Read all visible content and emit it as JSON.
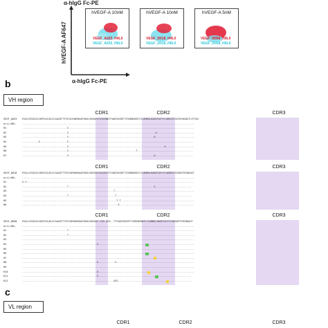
{
  "panel_a": {
    "x_axis_label": "α-hIgG Fc-PE",
    "y_axis_label": "hVEGF-A AF647",
    "top_label": "α-hIgG Fc-PE",
    "plots": [
      {
        "title": "hVEGF-A 10nM",
        "red_label": "VEGF_A033_H4L0",
        "cyan_label": "VEGF_A033_H0L0"
      },
      {
        "title": "hVEGF-A 10nM",
        "red_label": "VEGF_D018_H4L0",
        "cyan_label": "VEGF_D018_H0L0"
      },
      {
        "title": "hVEGF-A 5nM",
        "red_label": "VEGF_D058_H9L0",
        "cyan_label": "VEGF_D058_H0L0"
      }
    ]
  },
  "panel_b": {
    "letter": "b",
    "region_title": "VH region",
    "blocks": [
      {
        "cdr_labels": [
          "CDR1",
          "CDR2",
          "CDR3"
        ],
        "header_name": "VEGF_A033",
        "header_seq": "EVQLVESGGGLVKPGGSLRLSCAASGFTFSSYAIHWVRQAPGKGLEWVAVISYDGSNKYYADSVKGRFTISRDNSKNTLYLQMNSLRAEDTAVYYCAREGGYSGYDYWGQGTLVTVSS",
        "rows": [
          {
            "name": "ori(=H0)",
            "seq": "..................................................................................................................."
          },
          {
            "name": "H1",
            "seq": "..............................S...................................................................................."
          },
          {
            "name": "H2",
            "seq": "..............................S..........................................................A........................."
          },
          {
            "name": "H3",
            "seq": "..............................S.........................................................D.........................."
          },
          {
            "name": "H4",
            "seq": "...........E..................S..................................................................................."
          },
          {
            "name": "H5",
            "seq": "..............................S................................................................A..................."
          },
          {
            "name": "H6",
            "seq": "..............................S.............................................T....................................."
          },
          {
            "name": "H7",
            "seq": "..............................S.........................................................A........................."
          }
        ]
      },
      {
        "cdr_labels": [
          "CDR1",
          "CDR2",
          "CDR3"
        ],
        "header_name": "VEGF_D018",
        "header_seq": "EVQLLESGGGLVQPGGSLRLSCAASGFTFSSYAMSWVRQAPGKGLEWVSAISGSGGSTYYADSVKGRFTISRDNSKNTLYLQMNSLRAEDTAVYYCAKDRGYSSGWYFDYWGQGT",
        "rows": [
          {
            "name": "ori(=H0)",
            "seq": "..................................................................................................................."
          },
          {
            "name": "H1",
            "seq": "A.V................................................................................................................"
          },
          {
            "name": "H2",
            "seq": "..............................T.........................................................S........................"
          },
          {
            "name": "H3",
            "seq": ".............................................................T....................................................."
          },
          {
            "name": "H4",
            "seq": "..............................T...............................T.................................................."
          },
          {
            "name": "H5",
            "seq": "...............................................................T.T................................................."
          },
          {
            "name": "H6",
            "seq": "................................................................E.................................................."
          }
        ]
      },
      {
        "cdr_labels": [
          "CDR1",
          "CDR2",
          "CDR3"
        ],
        "header_name": "VEGF_D058",
        "header_seq": "EVQLLESGGGLVQPGGSLRLSCAASGFTFSSYAMSWVRQAPGKGLEWVSAI-SGS-GGS--TYYADSVKGRFTISRDNSKNTLYLQMNSLRAEDTAVYYCARGAPYFNYWGQGT",
        "rows": [
          {
            "name": "ori(=H0)",
            "seq": "..................................................................................................................."
          },
          {
            "name": "H1",
            "seq": "..............................T...................................................................................."
          },
          {
            "name": "H2",
            "seq": "..............................T...................................................................................."
          },
          {
            "name": "H3",
            "seq": ".......................................................-.........................................................."
          },
          {
            "name": "H4",
            "seq": "..................................................G.--.......--...................................................."
          },
          {
            "name": "H5",
            "seq": "..................................................-.--........-...................................................."
          },
          {
            "name": "H6",
            "seq": "..................................................-.-.........-...................................................."
          },
          {
            "name": "H7",
            "seq": "..................................................-.--.........-..................................................."
          },
          {
            "name": "H8",
            "seq": "..................................................G.--........G...................................................."
          },
          {
            "name": "H9",
            "seq": "..................................................-.--........-...................................................."
          },
          {
            "name": "H10",
            "seq": "..................................................Q.--......--....................................................."
          },
          {
            "name": "H11",
            "seq": "..................................................G.--..........................................................."
          },
          {
            "name": "H12",
            "seq": "..................................................-.--.......GGS................................................."
          }
        ]
      }
    ]
  },
  "panel_c": {
    "letter": "c",
    "region_title": "VL region",
    "cdr_labels": [
      "CDR1",
      "CDR2",
      "CDR3"
    ]
  }
}
